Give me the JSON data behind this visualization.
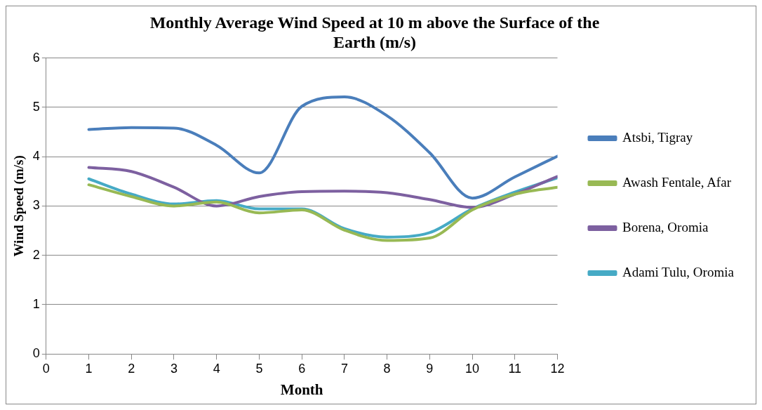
{
  "chart_data": {
    "type": "line",
    "title": "Monthly Average Wind Speed at 10 m above the Surface of the Earth (m/s)",
    "xlabel": "Month",
    "ylabel": "Wind Speed (m/s)",
    "x": [
      1,
      2,
      3,
      4,
      5,
      6,
      7,
      8,
      9,
      10,
      11,
      12
    ],
    "series": [
      {
        "name": "Atsbi, Tigray",
        "color": "#4a7ebb",
        "values": [
          4.55,
          4.59,
          4.58,
          4.23,
          3.67,
          5.02,
          5.21,
          4.83,
          4.08,
          3.16,
          3.59,
          4.01
        ]
      },
      {
        "name": "Awash Fentale, Afar",
        "color": "#98b954",
        "values": [
          3.43,
          3.19,
          3.0,
          3.08,
          2.86,
          2.92,
          2.51,
          2.3,
          2.35,
          2.92,
          3.24,
          3.38
        ]
      },
      {
        "name": "Borena, Oromia",
        "color": "#7d60a0",
        "values": [
          3.78,
          3.7,
          3.38,
          3.0,
          3.19,
          3.29,
          3.3,
          3.27,
          3.13,
          2.97,
          3.24,
          3.6
        ]
      },
      {
        "name": "Adami Tulu, Oromia",
        "color": "#46aac5",
        "values": [
          3.55,
          3.24,
          3.04,
          3.11,
          2.94,
          2.94,
          2.54,
          2.37,
          2.46,
          2.94,
          3.28,
          3.57
        ]
      }
    ],
    "xlim": [
      0,
      12
    ],
    "xticks": [
      0,
      1,
      2,
      3,
      4,
      5,
      6,
      7,
      8,
      9,
      10,
      11,
      12
    ],
    "ylim": [
      0,
      6
    ],
    "yticks": [
      0,
      1,
      2,
      3,
      4,
      5,
      6
    ],
    "grid": "y",
    "legend": "right",
    "marker": "none",
    "line_style": "solid"
  }
}
